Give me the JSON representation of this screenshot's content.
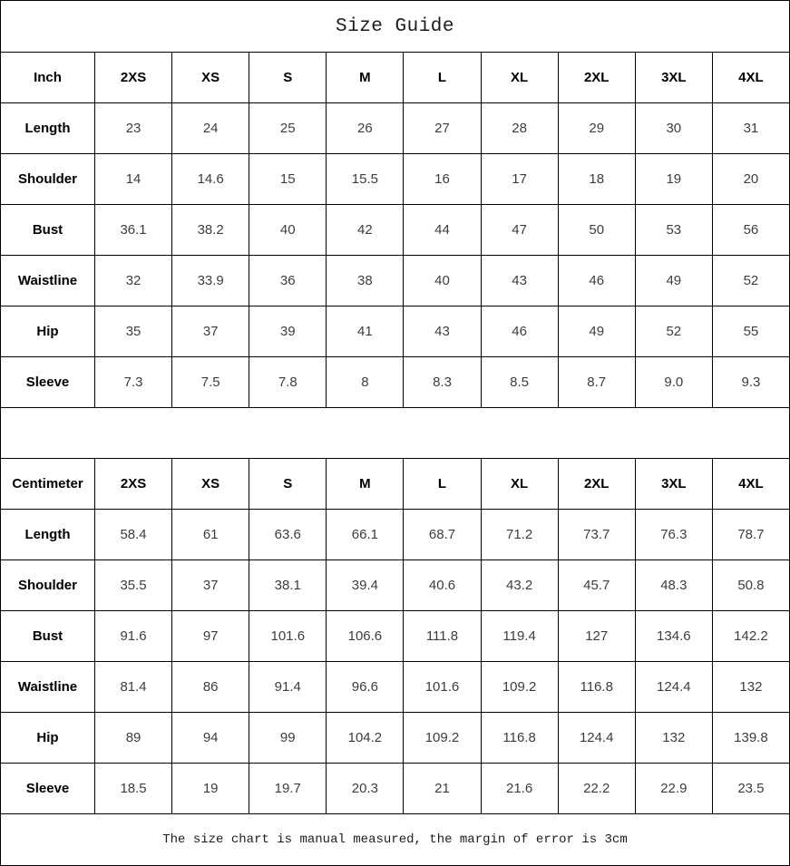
{
  "page_title": "Size Guide",
  "footer_note": "The size chart is manual measured, the margin of error is 3cm",
  "colors": {
    "border": "#000000",
    "header_text": "#000000",
    "value_text": "#3d3d3d",
    "background": "#ffffff"
  },
  "chart_data": [
    {
      "type": "table",
      "title": "Size Guide",
      "unit": "Inch",
      "columns": [
        "Inch",
        "2XS",
        "XS",
        "S",
        "M",
        "L",
        "XL",
        "2XL",
        "3XL",
        "4XL"
      ],
      "rows": [
        [
          "Length",
          "23",
          "24",
          "25",
          "26",
          "27",
          "28",
          "29",
          "30",
          "31"
        ],
        [
          "Shoulder",
          "14",
          "14.6",
          "15",
          "15.5",
          "16",
          "17",
          "18",
          "19",
          "20"
        ],
        [
          "Bust",
          "36.1",
          "38.2",
          "40",
          "42",
          "44",
          "47",
          "50",
          "53",
          "56"
        ],
        [
          "Waistline",
          "32",
          "33.9",
          "36",
          "38",
          "40",
          "43",
          "46",
          "49",
          "52"
        ],
        [
          "Hip",
          "35",
          "37",
          "39",
          "41",
          "43",
          "46",
          "49",
          "52",
          "55"
        ],
        [
          "Sleeve",
          "7.3",
          "7.5",
          "7.8",
          "8",
          "8.3",
          "8.5",
          "8.7",
          "9.0",
          "9.3"
        ]
      ]
    },
    {
      "type": "table",
      "title": "Size Guide",
      "unit": "Centimeter",
      "columns": [
        "Centimeter",
        "2XS",
        "XS",
        "S",
        "M",
        "L",
        "XL",
        "2XL",
        "3XL",
        "4XL"
      ],
      "rows": [
        [
          "Length",
          "58.4",
          "61",
          "63.6",
          "66.1",
          "68.7",
          "71.2",
          "73.7",
          "76.3",
          "78.7"
        ],
        [
          "Shoulder",
          "35.5",
          "37",
          "38.1",
          "39.4",
          "40.6",
          "43.2",
          "45.7",
          "48.3",
          "50.8"
        ],
        [
          "Bust",
          "91.6",
          "97",
          "101.6",
          "106.6",
          "111.8",
          "119.4",
          "127",
          "134.6",
          "142.2"
        ],
        [
          "Waistline",
          "81.4",
          "86",
          "91.4",
          "96.6",
          "101.6",
          "109.2",
          "116.8",
          "124.4",
          "132"
        ],
        [
          "Hip",
          "89",
          "94",
          "99",
          "104.2",
          "109.2",
          "116.8",
          "124.4",
          "132",
          "139.8"
        ],
        [
          "Sleeve",
          "18.5",
          "19",
          "19.7",
          "20.3",
          "21",
          "21.6",
          "22.2",
          "22.9",
          "23.5"
        ]
      ]
    }
  ]
}
